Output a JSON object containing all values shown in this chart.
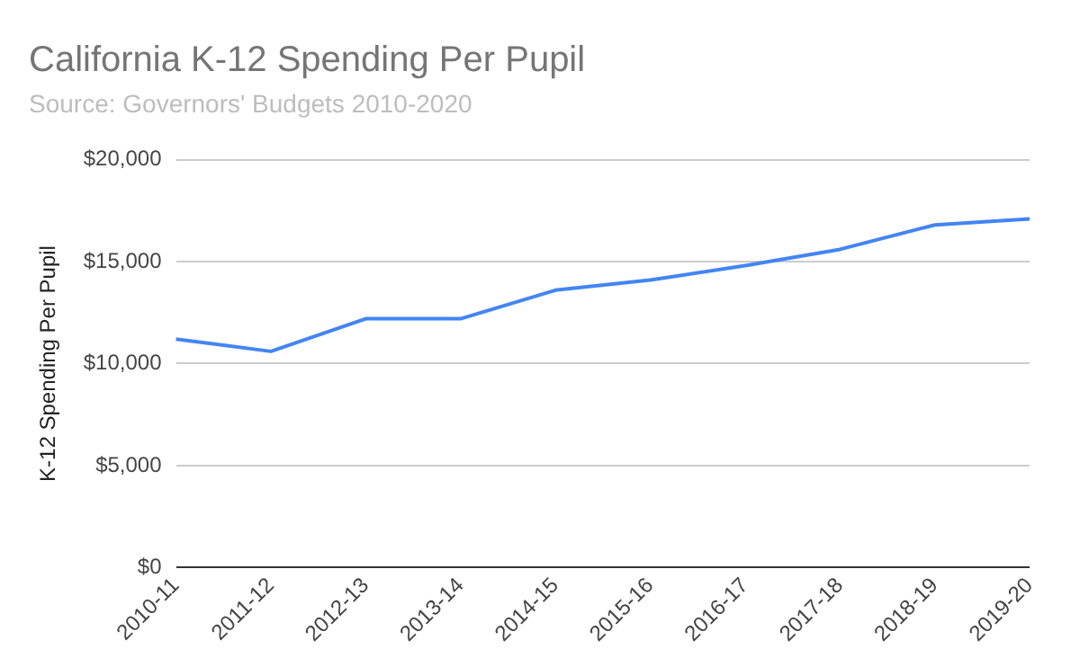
{
  "chart_data": {
    "type": "line",
    "title": "California K-12 Spending Per Pupil",
    "subtitle": "Source: Governors' Budgets 2010-2020",
    "ylabel": "K-12 Spending Per Pupil",
    "categories": [
      "2010-11",
      "2011-12",
      "2012-13",
      "2013-14",
      "2014-15",
      "2015-16",
      "2016-17",
      "2017-18",
      "2018-19",
      "2019-20"
    ],
    "series": [
      {
        "color": "#4285f4",
        "values": [
          11200,
          10600,
          12200,
          12200,
          13600,
          14100,
          14800,
          15600,
          16800,
          17100
        ]
      }
    ],
    "ylim": [
      0,
      20000
    ],
    "yticks": [
      {
        "value": 0,
        "label": "$0"
      },
      {
        "value": 5000,
        "label": "$5,000"
      },
      {
        "value": 10000,
        "label": "$10,000"
      },
      {
        "value": 15000,
        "label": "$15,000"
      },
      {
        "value": 20000,
        "label": "$20,000"
      }
    ],
    "grid": "y",
    "legend": false,
    "marker": "none",
    "line_style": "solid"
  }
}
